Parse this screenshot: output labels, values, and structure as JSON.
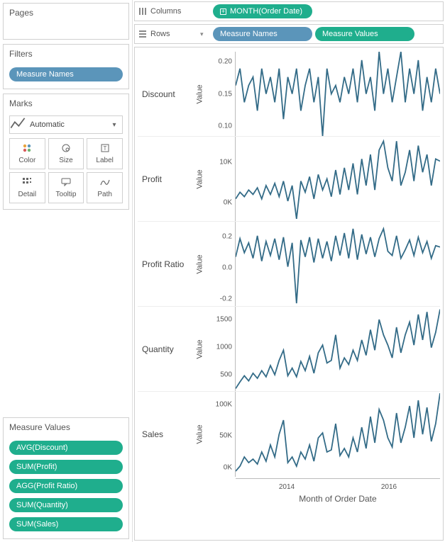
{
  "left": {
    "pages_title": "Pages",
    "filters_title": "Filters",
    "filters_pill": "Measure Names",
    "marks_title": "Marks",
    "marks_type": "Automatic",
    "mark_buttons": [
      "Color",
      "Size",
      "Label",
      "Detail",
      "Tooltip",
      "Path"
    ],
    "mv_title": "Measure Values",
    "mv_items": [
      "AVG(Discount)",
      "SUM(Profit)",
      "AGG(Profit Ratio)",
      "SUM(Quantity)",
      "SUM(Sales)"
    ]
  },
  "shelves": {
    "columns_label": "Columns",
    "columns_pill": "MONTH(Order Date)",
    "rows_label": "Rows",
    "rows_pills": [
      "Measure Names",
      "Measure Values"
    ]
  },
  "viz": {
    "y_title": "Value",
    "x_title": "Month of Order Date",
    "x_ticks": [
      "2014",
      "2016"
    ],
    "line_color": "#336b87",
    "rows": [
      {
        "label": "Discount",
        "ticks": [
          {
            "t": "0.20",
            "pos": 12
          },
          {
            "t": "0.15",
            "pos": 50
          },
          {
            "t": "0.10",
            "pos": 88
          }
        ],
        "series": [
          0.16,
          0.18,
          0.14,
          0.16,
          0.17,
          0.13,
          0.18,
          0.15,
          0.17,
          0.14,
          0.18,
          0.12,
          0.17,
          0.15,
          0.18,
          0.13,
          0.16,
          0.18,
          0.14,
          0.17,
          0.1,
          0.18,
          0.15,
          0.16,
          0.14,
          0.17,
          0.15,
          0.18,
          0.14,
          0.19,
          0.15,
          0.17,
          0.13,
          0.2,
          0.15,
          0.18,
          0.14,
          0.17,
          0.2,
          0.14,
          0.18,
          0.15,
          0.19,
          0.13,
          0.17,
          0.14,
          0.18,
          0.15
        ],
        "ymin": 0.1,
        "ymax": 0.2
      },
      {
        "label": "Profit",
        "ticks": [
          {
            "t": "10K",
            "pos": 30
          },
          {
            "t": "0K",
            "pos": 78
          }
        ],
        "series": [
          1000,
          2500,
          1500,
          3000,
          2000,
          3500,
          1000,
          4000,
          2000,
          4500,
          1500,
          5000,
          500,
          4000,
          -3500,
          5000,
          2500,
          6000,
          1000,
          6500,
          3000,
          5500,
          1500,
          7500,
          2000,
          8000,
          3000,
          9000,
          2000,
          10000,
          4000,
          11000,
          3000,
          12000,
          14000,
          8000,
          5000,
          14000,
          4000,
          7000,
          12000,
          5000,
          13000,
          7000,
          11000,
          4000,
          10000,
          9500
        ],
        "ymin": -4000,
        "ymax": 15000
      },
      {
        "label": "Profit Ratio",
        "ticks": [
          {
            "t": "0.2",
            "pos": 18
          },
          {
            "t": "0.0",
            "pos": 55
          },
          {
            "t": "-0.2",
            "pos": 92
          }
        ],
        "series": [
          0.05,
          0.18,
          0.08,
          0.15,
          0.04,
          0.2,
          0.02,
          0.16,
          0.06,
          0.18,
          0.03,
          0.19,
          -0.02,
          0.15,
          -0.28,
          0.17,
          0.05,
          0.19,
          0.01,
          0.18,
          0.04,
          0.16,
          0.02,
          0.2,
          0.06,
          0.22,
          0.04,
          0.25,
          0.03,
          0.21,
          0.07,
          0.19,
          0.05,
          0.18,
          0.25,
          0.09,
          0.06,
          0.2,
          0.04,
          0.1,
          0.17,
          0.06,
          0.19,
          0.08,
          0.16,
          0.04,
          0.13,
          0.12
        ],
        "ymin": -0.3,
        "ymax": 0.3
      },
      {
        "label": "Quantity",
        "ticks": [
          {
            "t": "1500",
            "pos": 15
          },
          {
            "t": "1000",
            "pos": 48
          },
          {
            "t": "500",
            "pos": 81
          }
        ],
        "series": [
          150,
          280,
          400,
          300,
          450,
          350,
          500,
          380,
          600,
          420,
          700,
          900,
          400,
          550,
          380,
          680,
          500,
          780,
          450,
          850,
          1000,
          650,
          700,
          1200,
          550,
          750,
          620,
          900,
          700,
          1100,
          800,
          1300,
          900,
          1500,
          1200,
          1000,
          750,
          1350,
          850,
          1200,
          1450,
          1000,
          1600,
          1100,
          1650,
          950,
          1250,
          1700
        ],
        "ymin": 100,
        "ymax": 1750
      },
      {
        "label": "Sales",
        "ticks": [
          {
            "t": "100K",
            "pos": 15
          },
          {
            "t": "50K",
            "pos": 52
          },
          {
            "t": "0K",
            "pos": 89
          }
        ],
        "series": [
          8000,
          15000,
          28000,
          20000,
          25000,
          18000,
          35000,
          22000,
          45000,
          28000,
          60000,
          80000,
          20000,
          28000,
          15000,
          35000,
          25000,
          45000,
          22000,
          55000,
          62000,
          35000,
          38000,
          75000,
          30000,
          40000,
          28000,
          55000,
          35000,
          70000,
          40000,
          85000,
          48000,
          95000,
          80000,
          55000,
          42000,
          90000,
          48000,
          70000,
          100000,
          55000,
          108000,
          60000,
          98000,
          50000,
          75000,
          118000
        ],
        "ymin": 0,
        "ymax": 120000
      }
    ]
  }
}
